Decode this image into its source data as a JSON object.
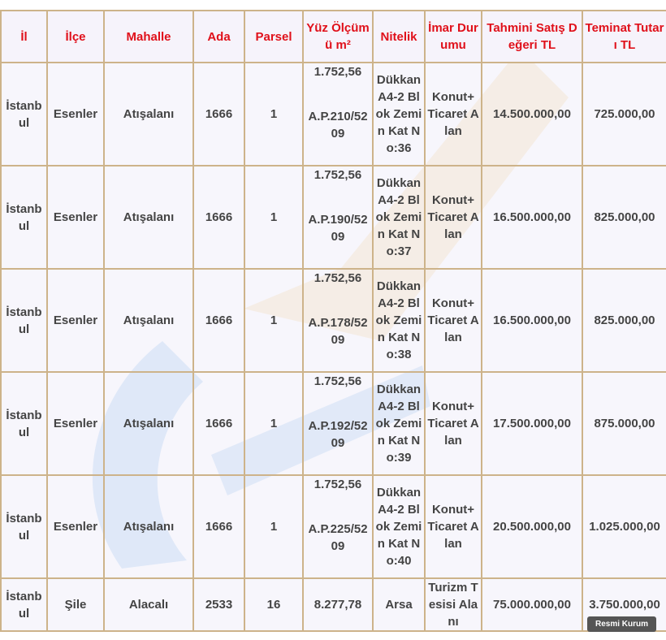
{
  "table": {
    "headers": [
      "İl",
      "İlçe",
      "Mahalle",
      "Ada",
      "Parsel",
      "Yüz Ölçümü m²",
      "Nitelik",
      "İmar Durumu",
      "Tahmini Satış Değeri TL",
      "Teminat Tutarı TL"
    ],
    "rows": [
      [
        "İstanbul",
        "Esenler",
        "Atışalanı",
        "1666",
        "1",
        [
          "1.752,56",
          "A.P.210/5209"
        ],
        "Dükkan A4-2 Blok Zemin Kat No:36",
        "Konut+ Ticaret Alan",
        "14.500.000,00",
        "725.000,00"
      ],
      [
        "İstanbul",
        "Esenler",
        "Atışalanı",
        "1666",
        "1",
        [
          "1.752,56",
          "A.P.190/5209"
        ],
        "Dükkan A4-2 Blok Zemin Kat No:37",
        "Konut+ Ticaret Alan",
        "16.500.000,00",
        "825.000,00"
      ],
      [
        "İstanbul",
        "Esenler",
        "Atışalanı",
        "1666",
        "1",
        [
          "1.752,56",
          "A.P.178/5209"
        ],
        "Dükkan A4-2 Blok Zemin Kat No:38",
        "Konut+ Ticaret Alan",
        "16.500.000,00",
        "825.000,00"
      ],
      [
        "İstanbul",
        "Esenler",
        "Atışalanı",
        "1666",
        "1",
        [
          "1.752,56",
          "A.P.192/5209"
        ],
        "Dükkan A4-2 Blok Zemin Kat No:39",
        "Konut+ Ticaret Alan",
        "17.500.000,00",
        "875.000,00"
      ],
      [
        "İstanbul",
        "Esenler",
        "Atışalanı",
        "1666",
        "1",
        [
          "1.752,56",
          "A.P.225/5209"
        ],
        "Dükkan A4-2 Blok Zemin Kat No:40",
        "Konut+ Ticaret Alan",
        "20.500.000,00",
        "1.025.000,00"
      ],
      [
        "İstanbul",
        "Şile",
        "Alacalı",
        "2533",
        "16",
        "8.277,78",
        "Arsa",
        "Turizm Tesisi Alanı",
        "75.000.000,00",
        "3.750.000,00"
      ]
    ]
  },
  "badge": "Resmi Kurum"
}
